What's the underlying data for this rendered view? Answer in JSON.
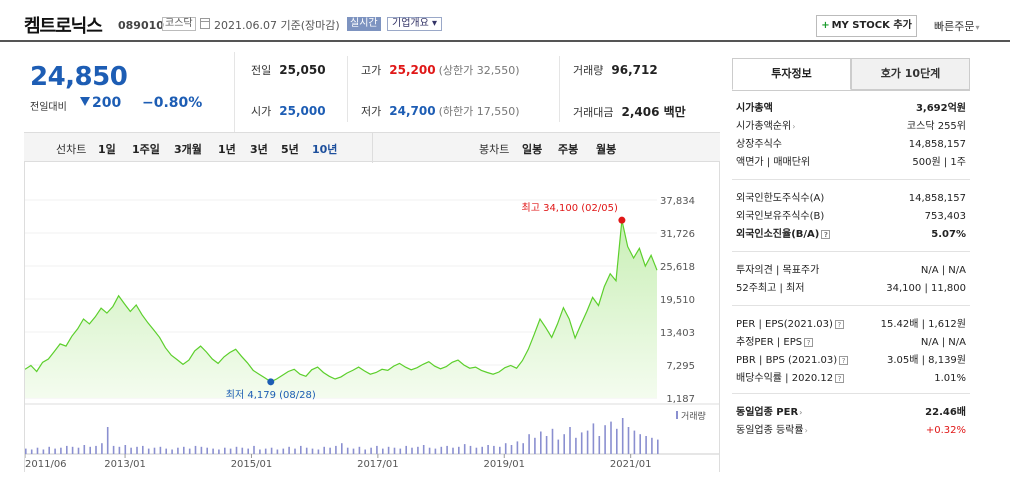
{
  "header": {
    "name": "켐트로닉스",
    "code": "089010",
    "market": "코스닥",
    "date": "2021.06.07 기준(장마감)",
    "realtime": "실시간",
    "company_info": "기업개요",
    "mystock": "MY STOCK 추가",
    "quick_order": "빠른주문"
  },
  "price": {
    "current": "24,850",
    "change_label": "전일대비",
    "change": "200",
    "change_pct": "−0.80%"
  },
  "stats": {
    "prev_close_label": "전일",
    "prev_close": "25,050",
    "high_label": "고가",
    "high": "25,200",
    "upper_limit": "(상한가 32,550)",
    "volume_label": "거래량",
    "volume": "96,712",
    "open_label": "시가",
    "open": "25,000",
    "low_label": "저가",
    "low": "24,700",
    "lower_limit": "(하한가 17,550)",
    "amount_label": "거래대금",
    "amount": "2,406 백만"
  },
  "chart_tabs": {
    "line_label": "선차트",
    "periods": [
      "1일",
      "1주일",
      "3개월",
      "1년",
      "3년",
      "5년",
      "10년"
    ],
    "candle_label": "봉차트",
    "candles": [
      "일봉",
      "주봉",
      "월봉"
    ]
  },
  "chart_data": {
    "type": "area",
    "x_range": [
      "2011/06",
      "2021/06"
    ],
    "x_ticks": [
      "2011/06",
      "2013/01",
      "2015/01",
      "2017/01",
      "2019/01",
      "2021/01"
    ],
    "y_ticks": [
      "37,834",
      "31,726",
      "25,618",
      "19,510",
      "13,403",
      "7,295",
      "1,187"
    ],
    "ylim": [
      1187,
      37834
    ],
    "max_label": "최고 34,100 (02/05)",
    "min_label": "최저 4,179 (08/28)",
    "volume_label": "거래량",
    "values": [
      6500,
      7200,
      6100,
      7800,
      8400,
      9800,
      11200,
      10800,
      12600,
      14000,
      15800,
      14900,
      16200,
      17800,
      16900,
      18100,
      20100,
      18600,
      17200,
      18400,
      16600,
      15100,
      13800,
      12400,
      10500,
      9100,
      8300,
      7400,
      8200,
      9900,
      10800,
      9700,
      8400,
      7600,
      8800,
      9600,
      10200,
      8900,
      7700,
      6300,
      5600,
      4900,
      4179,
      4700,
      5400,
      6100,
      6500,
      5600,
      5200,
      6400,
      6900,
      5900,
      5200,
      4700,
      5100,
      5800,
      6300,
      6900,
      6200,
      5600,
      5900,
      6500,
      6300,
      7100,
      7600,
      6900,
      6400,
      6800,
      7400,
      7900,
      7100,
      6600,
      7000,
      7800,
      8200,
      7300,
      6700,
      6900,
      6300,
      5900,
      5600,
      6000,
      6800,
      7200,
      6700,
      8100,
      10200,
      12900,
      15800,
      14200,
      12400,
      14900,
      17900,
      15800,
      12300,
      14800,
      17200,
      19800,
      18300,
      21800,
      24200,
      22900,
      34100,
      29200,
      27100,
      28900,
      25600,
      27600,
      24850
    ],
    "volume": [
      6,
      5,
      7,
      5,
      8,
      6,
      7,
      9,
      8,
      7,
      10,
      8,
      9,
      12,
      30,
      9,
      8,
      10,
      7,
      8,
      9,
      6,
      7,
      8,
      6,
      5,
      7,
      8,
      6,
      9,
      8,
      7,
      6,
      5,
      7,
      6,
      8,
      7,
      6,
      9,
      5,
      6,
      7,
      5,
      6,
      8,
      6,
      9,
      7,
      6,
      5,
      8,
      7,
      9,
      12,
      7,
      6,
      8,
      5,
      7,
      9,
      6,
      8,
      7,
      6,
      9,
      7,
      8,
      10,
      7,
      6,
      8,
      9,
      7,
      8,
      11,
      9,
      7,
      8,
      10,
      9,
      8,
      12,
      10,
      14,
      12,
      22,
      18,
      25,
      20,
      28,
      16,
      22,
      30,
      18,
      24,
      26,
      34,
      20,
      32,
      36,
      28,
      40,
      30,
      26,
      22,
      20,
      18,
      16
    ]
  },
  "right_panel": {
    "tabs": [
      "투자정보",
      "호가 10단계"
    ],
    "rows": [
      {
        "k": "시가총액",
        "v": "3,692억원",
        "bold": true
      },
      {
        "k": "시가총액순위",
        "v": "코스닥 255위"
      },
      {
        "k": "상장주식수",
        "v": "14,858,157"
      },
      {
        "k": "액면가 | 매매단위",
        "v": "500원 | 1주"
      },
      {
        "k": "외국인한도주식수(A)",
        "v": "14,858,157"
      },
      {
        "k": "외국인보유주식수(B)",
        "v": "753,403"
      },
      {
        "k": "외국인소진율(B/A)",
        "v": "5.07%",
        "bold": true
      },
      {
        "k": "투자의견 | 목표주가",
        "v": "N/A | N/A"
      },
      {
        "k": "52주최고 | 최저",
        "v": "34,100 | 11,800"
      },
      {
        "k": "PER | EPS(2021.03)",
        "v": "15.42배 | 1,612원"
      },
      {
        "k": "추정PER | EPS",
        "v": "N/A | N/A"
      },
      {
        "k": "PBR | BPS (2021.03)",
        "v": "3.05배 | 8,139원"
      },
      {
        "k": "배당수익률 | 2020.12",
        "v": "1.01%"
      },
      {
        "k": "동일업종 PER",
        "v": "22.46배",
        "bold": true
      },
      {
        "k": "동일업종 등락률",
        "v": "+0.32%",
        "red": true
      }
    ]
  },
  "colors": {
    "up": "#e01717",
    "down": "#1d5db4",
    "line": "#5ccf2c",
    "fill": "#dbf5cf"
  }
}
